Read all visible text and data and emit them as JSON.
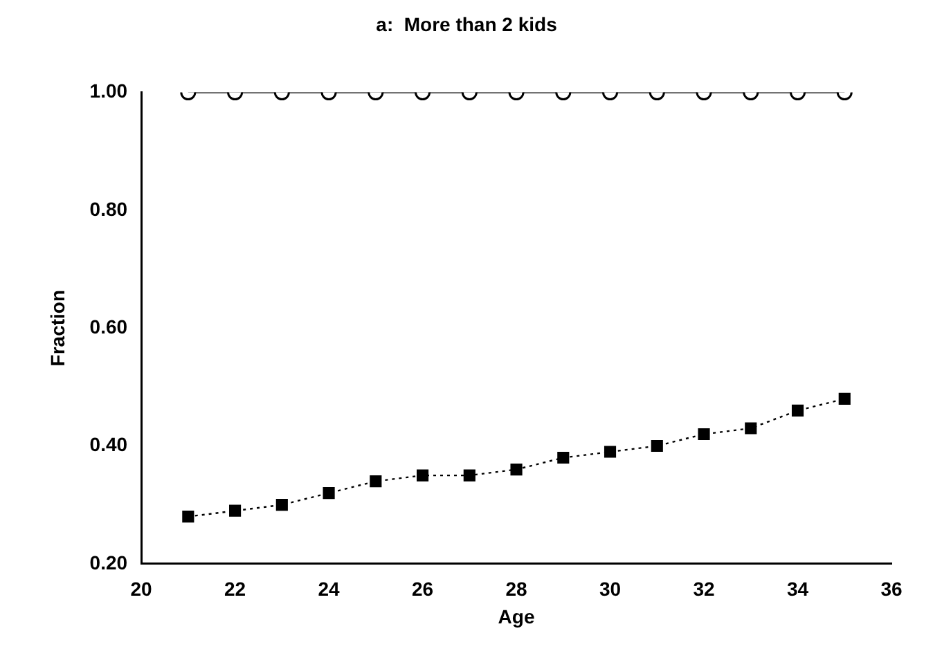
{
  "chart_data": {
    "type": "line",
    "title": "a:  More than 2 kids",
    "xlabel": "Age",
    "ylabel": "Fraction",
    "x": [
      21,
      22,
      23,
      24,
      25,
      26,
      27,
      28,
      29,
      30,
      31,
      32,
      33,
      34,
      35
    ],
    "series": [
      {
        "color": "#000000",
        "marker": "circle",
        "line_style": "solid",
        "values": [
          1.0,
          1.0,
          1.0,
          1.0,
          1.0,
          1.0,
          1.0,
          1.0,
          1.0,
          1.0,
          1.0,
          1.0,
          1.0,
          1.0,
          1.0
        ]
      },
      {
        "color": "#000000",
        "marker": "square",
        "line_style": "dotted",
        "values": [
          0.28,
          0.29,
          0.3,
          0.32,
          0.34,
          0.35,
          0.35,
          0.36,
          0.38,
          0.39,
          0.4,
          0.42,
          0.43,
          0.46,
          0.48
        ]
      }
    ],
    "xlim": [
      20,
      36
    ],
    "xticks": [
      20,
      22,
      24,
      26,
      28,
      30,
      32,
      34,
      36
    ],
    "ylim": [
      0.2,
      1.0
    ],
    "yticks": [
      {
        "value": 0.2,
        "label": "0.20"
      },
      {
        "value": 0.4,
        "label": "0.40"
      },
      {
        "value": 0.6,
        "label": "0.60"
      },
      {
        "value": 0.8,
        "label": "0.80"
      },
      {
        "value": 1.0,
        "label": "1.00"
      }
    ],
    "grid": false,
    "legend": false
  }
}
